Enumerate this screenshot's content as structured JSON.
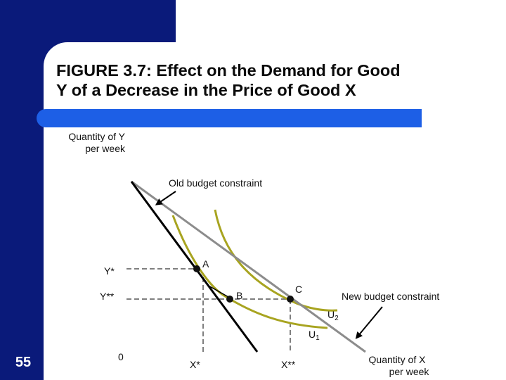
{
  "title": "FIGURE 3.7: Effect on the Demand for Good Y of a Decrease in the Price of Good X",
  "title_line1": "FIGURE 3.7: Effect on the Demand for Good",
  "title_line2": "Y of a Decrease in the Price of Good X",
  "slide_number": "55",
  "colors": {
    "navy": "#0a1a7a",
    "accent_bar": "#1d5fe6",
    "budget_old": "#000000",
    "budget_new": "#808080",
    "indifference_curves": "#a8a420",
    "dashed_guides": "#7f7f7f"
  },
  "chart_data": {
    "type": "diagram",
    "ylabel_line1": "Quantity of Y",
    "ylabel_line2": "per week",
    "xlabel_line1": "Quantity of X",
    "xlabel_line2": "per week",
    "origin_label": "0",
    "old_budget_label": "Old budget constraint",
    "new_budget_label": "New budget constraint",
    "curves": [
      {
        "name": "U",
        "subscript": "1"
      },
      {
        "name": "U",
        "subscript": "2"
      }
    ],
    "points": [
      {
        "label": "A"
      },
      {
        "label": "B"
      },
      {
        "label": "C"
      }
    ],
    "y_ticks": [
      "Y*",
      "Y**"
    ],
    "x_ticks": [
      "X*",
      "X**"
    ]
  }
}
